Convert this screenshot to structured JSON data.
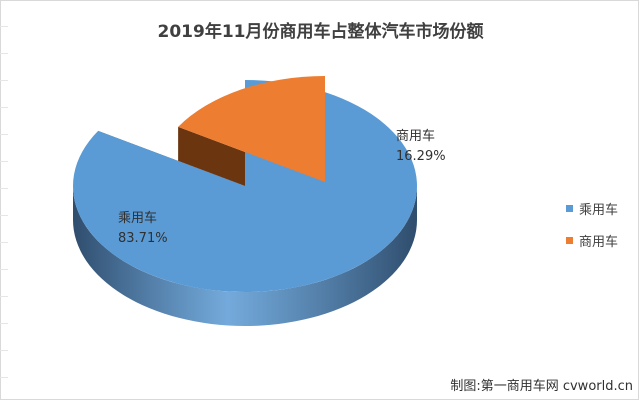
{
  "chart_data": {
    "type": "pie",
    "title": "2019年11月份商用车占整体汽车市场份额",
    "slices": [
      {
        "name": "乘用车",
        "value": 83.71,
        "label": "83.71%",
        "color": "#5b9bd5",
        "side": "#2f4d6d"
      },
      {
        "name": "商用车",
        "value": 16.29,
        "label": "16.29%",
        "color": "#ed7d31",
        "side": "#6b3510"
      }
    ],
    "legend_position": "right",
    "grid": false
  },
  "footer": "制图:第一商用车网 cvworld.cn"
}
